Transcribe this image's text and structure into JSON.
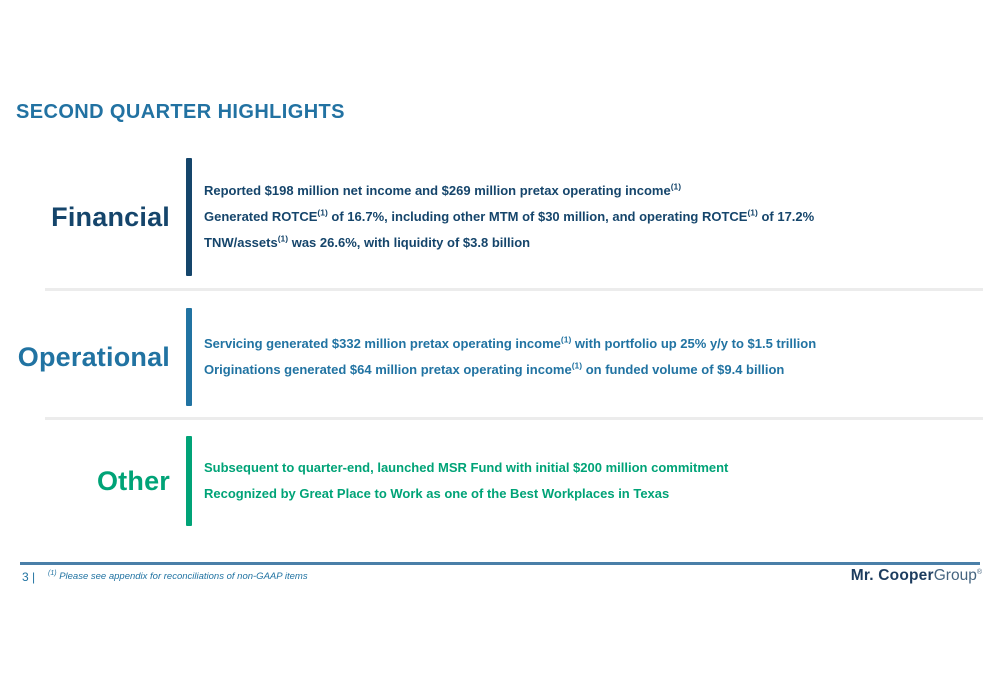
{
  "slide": {
    "title": "SECOND QUARTER HIGHLIGHTS",
    "page_number": "3 |",
    "footnote": {
      "marker": "(1)",
      "text": "Please see appendix for reconciliations of non-GAAP items"
    },
    "logo": {
      "primary": "Mr. Cooper",
      "secondary": "Group",
      "mark": "®"
    },
    "colors": {
      "title": "#2272A2",
      "financial": "#15456B",
      "operational": "#2173A2",
      "other": "#00A377",
      "divider": "#ECECEC",
      "footer_line": "#4A7FA8"
    }
  },
  "sections": [
    {
      "id": "financial",
      "label": "Financial",
      "color": "#15456B",
      "bullets": [
        {
          "segments": [
            {
              "text": "Reported $198 million net income and $269 million pretax operating income"
            },
            {
              "text": "(1)",
              "sup": true
            }
          ]
        },
        {
          "segments": [
            {
              "text": "Generated ROTCE"
            },
            {
              "text": "(1)",
              "sup": true
            },
            {
              "text": " of 16.7%, including other MTM of $30 million, and operating ROTCE"
            },
            {
              "text": "(1)",
              "sup": true
            },
            {
              "text": " of 17.2%"
            }
          ]
        },
        {
          "segments": [
            {
              "text": "TNW/assets"
            },
            {
              "text": "(1)",
              "sup": true
            },
            {
              "text": " was 26.6%, with liquidity of $3.8 billion"
            }
          ]
        }
      ]
    },
    {
      "id": "operational",
      "label": "Operational",
      "color": "#2173A2",
      "bullets": [
        {
          "segments": [
            {
              "text": "Servicing generated $332 million pretax operating income"
            },
            {
              "text": "(1)",
              "sup": true
            },
            {
              "text": " with portfolio up 25% y/y to $1.5 trillion"
            }
          ]
        },
        {
          "segments": [
            {
              "text": "Originations generated $64 million pretax operating income"
            },
            {
              "text": "(1)",
              "sup": true
            },
            {
              "text": " on funded volume of $9.4 billion"
            }
          ]
        }
      ]
    },
    {
      "id": "other",
      "label": "Other",
      "color": "#00A377",
      "bullets": [
        {
          "segments": [
            {
              "text": "Subsequent to quarter-end, launched MSR Fund with initial $200 million commitment"
            }
          ]
        },
        {
          "segments": [
            {
              "text": "Recognized by Great Place to Work as one of the Best Workplaces in Texas"
            }
          ]
        }
      ]
    }
  ]
}
